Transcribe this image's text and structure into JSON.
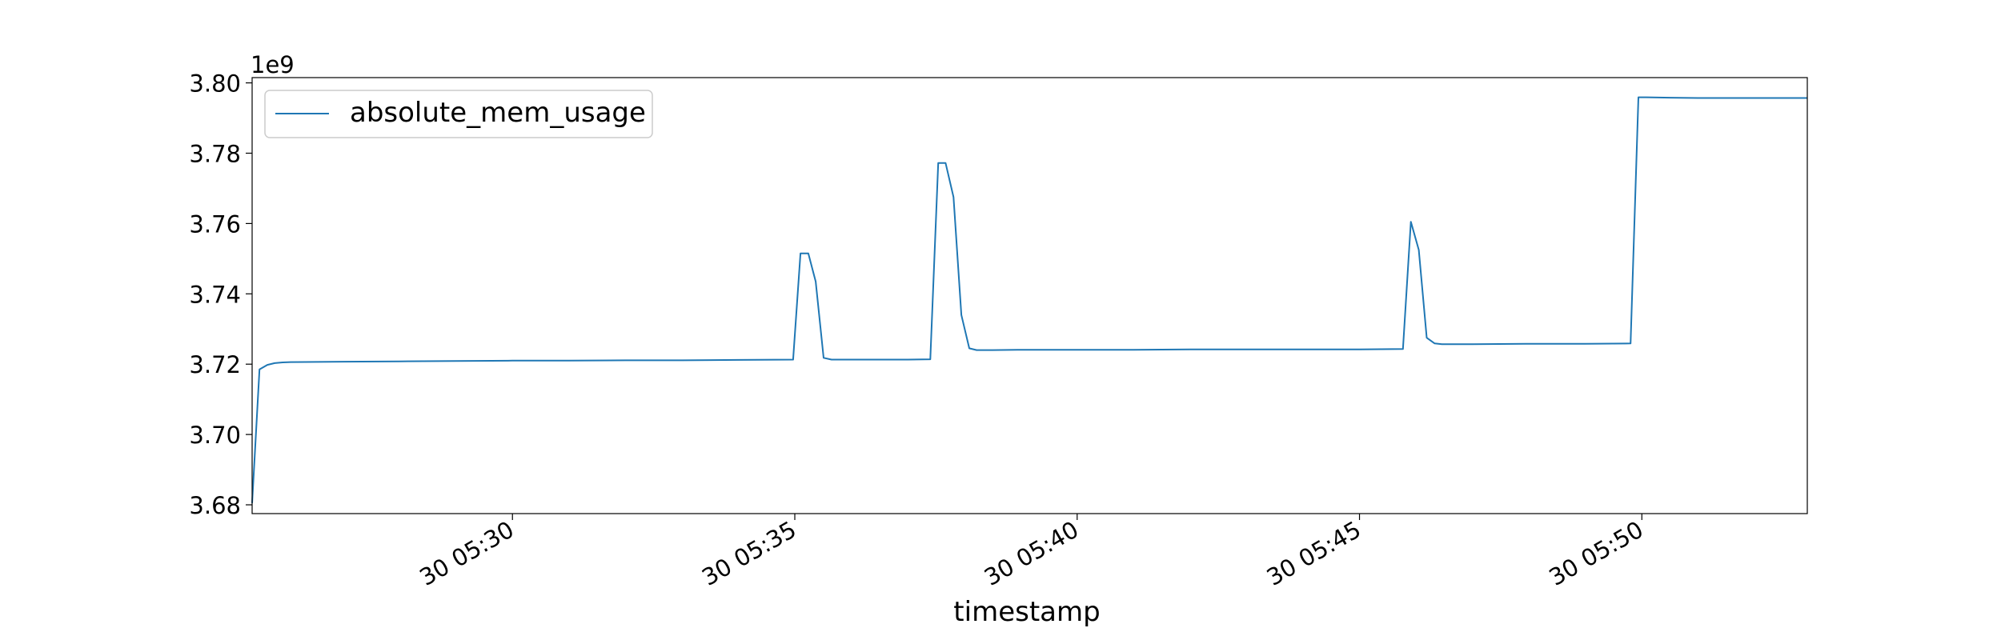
{
  "chart_data": {
    "type": "line",
    "title": "",
    "xlabel": "timestamp",
    "ylabel": "",
    "y_offset_label": "1e9",
    "x_unit": "minutes",
    "xlim": [
      25.39,
      52.93
    ],
    "ylim": [
      3.6775,
      3.8015
    ],
    "x_ticks": [
      {
        "value": 30,
        "label": "30 05:30"
      },
      {
        "value": 35,
        "label": "30 05:35"
      },
      {
        "value": 40,
        "label": "30 05:40"
      },
      {
        "value": 45,
        "label": "30 05:45"
      },
      {
        "value": 50,
        "label": "30 05:50"
      }
    ],
    "y_ticks": [
      {
        "value": 3.68,
        "label": "3.68"
      },
      {
        "value": 3.7,
        "label": "3.70"
      },
      {
        "value": 3.72,
        "label": "3.72"
      },
      {
        "value": 3.74,
        "label": "3.74"
      },
      {
        "value": 3.76,
        "label": "3.76"
      },
      {
        "value": 3.78,
        "label": "3.78"
      },
      {
        "value": 3.8,
        "label": "3.80"
      }
    ],
    "grid": false,
    "legend_position": "top-left",
    "series": [
      {
        "name": "absolute_mem_usage",
        "color": "#1f77b4",
        "x": [
          25.39,
          25.52,
          25.66,
          25.79,
          25.93,
          26.07,
          27.0,
          28.0,
          29.0,
          30.0,
          31.0,
          32.0,
          33.0,
          34.0,
          34.97,
          35.1,
          35.24,
          35.37,
          35.51,
          35.65,
          36.0,
          37.0,
          37.4,
          37.54,
          37.67,
          37.81,
          37.95,
          38.09,
          38.22,
          38.5,
          39.0,
          40.0,
          41.0,
          42.0,
          43.0,
          44.0,
          45.0,
          45.77,
          45.91,
          46.05,
          46.19,
          46.33,
          46.46,
          47.0,
          48.0,
          49.0,
          49.8,
          49.94,
          50.08,
          50.5,
          51.0,
          52.0,
          52.93
        ],
        "values": [
          3.6805,
          3.7185,
          3.7198,
          3.7203,
          3.7205,
          3.7206,
          3.7207,
          3.7208,
          3.7209,
          3.721,
          3.721,
          3.7211,
          3.7211,
          3.7212,
          3.7213,
          3.7515,
          3.7515,
          3.7435,
          3.7218,
          3.7213,
          3.7213,
          3.7213,
          3.7214,
          3.7772,
          3.7772,
          3.7675,
          3.734,
          3.7245,
          3.724,
          3.724,
          3.7241,
          3.7241,
          3.7241,
          3.7242,
          3.7242,
          3.7242,
          3.7242,
          3.7243,
          3.7605,
          3.7525,
          3.7275,
          3.7259,
          3.7257,
          3.7257,
          3.7258,
          3.7258,
          3.7259,
          3.7959,
          3.7959,
          3.7958,
          3.7957,
          3.7957,
          3.7957
        ]
      }
    ]
  }
}
